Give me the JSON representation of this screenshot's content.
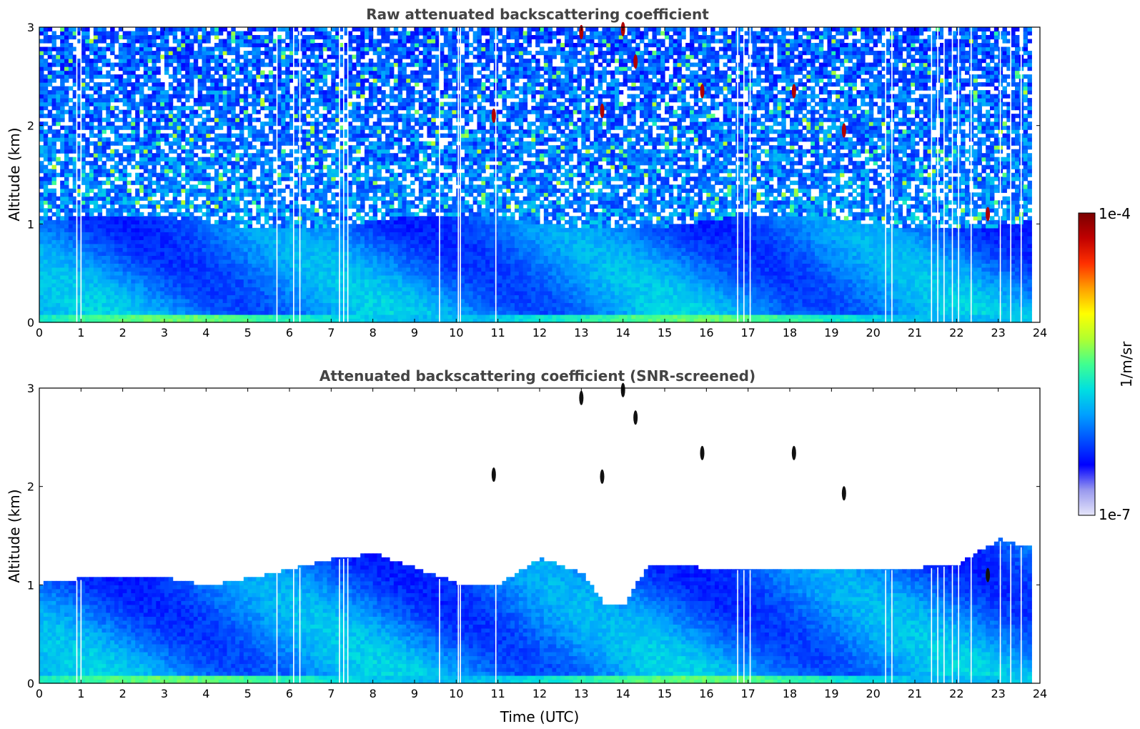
{
  "chart_data": [
    {
      "type": "heatmap",
      "title": "Raw attenuated backscattering coefficient",
      "xlabel": "",
      "ylabel": "Altitude (km)",
      "xlim": [
        0,
        24
      ],
      "ylim": [
        0,
        3
      ],
      "x_ticks": [
        0,
        1,
        2,
        3,
        4,
        5,
        6,
        7,
        8,
        9,
        10,
        11,
        12,
        13,
        14,
        15,
        16,
        17,
        18,
        19,
        20,
        21,
        22,
        23,
        24
      ],
      "y_ticks": [
        0,
        1,
        2,
        3
      ],
      "grid": false,
      "boundary_layer_top_km": 1.0,
      "surface_layer_peak_km": 0.05,
      "data_gaps_utc": [
        0.9,
        1.0,
        5.7,
        6.1,
        6.25,
        7.2,
        7.3,
        7.4,
        9.6,
        10.05,
        10.1,
        10.95,
        16.75,
        16.9,
        17.05,
        20.3,
        20.45,
        21.4,
        21.55,
        21.7,
        21.9,
        22.05,
        22.35,
        23.05,
        23.3,
        23.55
      ],
      "cloud_features": [
        {
          "t": 13.5,
          "alt": 2.15,
          "level": "high"
        },
        {
          "t": 14.3,
          "alt": 2.65,
          "level": "high"
        },
        {
          "t": 13.0,
          "alt": 2.95,
          "level": "high"
        },
        {
          "t": 14.0,
          "alt": 2.98,
          "level": "high"
        },
        {
          "t": 10.9,
          "alt": 2.1,
          "level": "high"
        },
        {
          "t": 15.9,
          "alt": 2.35,
          "level": "high"
        },
        {
          "t": 18.1,
          "alt": 2.35,
          "level": "high"
        },
        {
          "t": 19.3,
          "alt": 1.95,
          "level": "high"
        },
        {
          "t": 22.75,
          "alt": 1.1,
          "level": "high"
        }
      ]
    },
    {
      "type": "heatmap",
      "title": "Attenuated backscattering coefficient (SNR-screened)",
      "xlabel": "Time (UTC)",
      "ylabel": "Altitude (km)",
      "xlim": [
        0,
        24
      ],
      "ylim": [
        0,
        3
      ],
      "x_ticks": [
        0,
        1,
        2,
        3,
        4,
        5,
        6,
        7,
        8,
        9,
        10,
        11,
        12,
        13,
        14,
        15,
        16,
        17,
        18,
        19,
        20,
        21,
        22,
        23,
        24
      ],
      "y_ticks": [
        0,
        1,
        2,
        3
      ],
      "grid": false,
      "screened_top_km": [
        [
          0,
          1.0
        ],
        [
          1,
          1.05
        ],
        [
          2,
          1.05
        ],
        [
          3,
          1.05
        ],
        [
          4,
          0.97
        ],
        [
          5,
          1.05
        ],
        [
          6,
          1.15
        ],
        [
          7,
          1.25
        ],
        [
          8,
          1.3
        ],
        [
          9,
          1.15
        ],
        [
          10,
          1.0
        ],
        [
          11,
          1.0
        ],
        [
          12,
          1.25
        ],
        [
          13,
          1.1
        ],
        [
          13.5,
          0.8
        ],
        [
          14,
          0.8
        ],
        [
          14.5,
          1.15
        ],
        [
          15,
          1.2
        ],
        [
          16,
          1.15
        ],
        [
          17,
          1.15
        ],
        [
          18,
          1.15
        ],
        [
          19,
          1.15
        ],
        [
          20,
          1.15
        ],
        [
          21,
          1.15
        ],
        [
          22,
          1.2
        ],
        [
          23,
          1.45
        ],
        [
          23.8,
          1.35
        ]
      ],
      "cloud_features": [
        {
          "t": 13.5,
          "alt": 2.1,
          "level": "black"
        },
        {
          "t": 13.0,
          "alt": 2.9,
          "level": "black"
        },
        {
          "t": 14.0,
          "alt": 2.98,
          "level": "black"
        },
        {
          "t": 14.3,
          "alt": 2.7,
          "level": "black"
        },
        {
          "t": 10.9,
          "alt": 2.12,
          "level": "black"
        },
        {
          "t": 15.9,
          "alt": 2.34,
          "level": "black"
        },
        {
          "t": 18.1,
          "alt": 2.34,
          "level": "black"
        },
        {
          "t": 19.3,
          "alt": 1.93,
          "level": "black"
        },
        {
          "t": 22.75,
          "alt": 1.1,
          "level": "black"
        }
      ]
    }
  ],
  "colorbar": {
    "label": "1/m/sr",
    "max_label": "1e-4",
    "min_label": "1e-7",
    "stops": [
      "#e6e6fa",
      "#9999ee",
      "#0000ff",
      "#0050ff",
      "#00a0ff",
      "#00e0e0",
      "#40ff90",
      "#b0ff30",
      "#ffff00",
      "#ffa000",
      "#ff3000",
      "#c00000",
      "#7a0000"
    ]
  }
}
